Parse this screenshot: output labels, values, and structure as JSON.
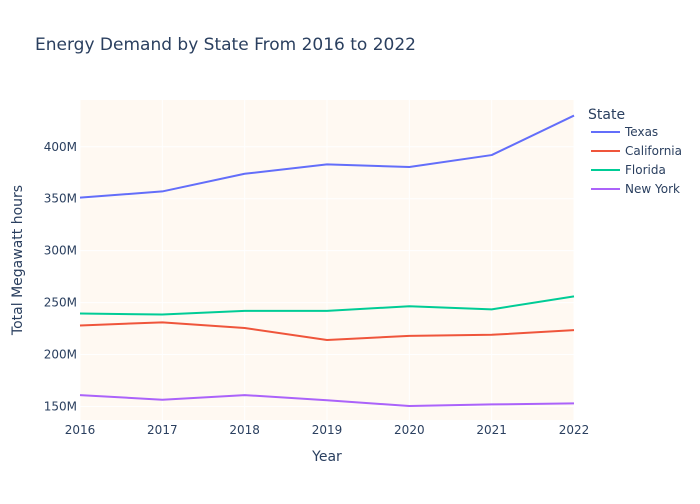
{
  "chart_data": {
    "type": "line",
    "title": "Energy Demand by State From 2016 to 2022",
    "xlabel": "Year",
    "ylabel": "Total Megawatt hours",
    "x": [
      2016,
      2017,
      2018,
      2019,
      2020,
      2021,
      2022
    ],
    "x_tick_labels": [
      "2016",
      "2017",
      "2018",
      "2019",
      "2020",
      "2021",
      "2022"
    ],
    "xlim": [
      2016,
      2022
    ],
    "ylim": [
      137000000,
      445000000
    ],
    "y_ticks": [
      150000000,
      200000000,
      250000000,
      300000000,
      350000000,
      400000000
    ],
    "y_tick_labels": [
      "150M",
      "200M",
      "250M",
      "300M",
      "350M",
      "400M"
    ],
    "grid": true,
    "plot_background": "#fff9f2",
    "legend": {
      "title": "State",
      "placement": "top-right, outside plot"
    },
    "series": [
      {
        "name": "Texas",
        "color": "#636efa",
        "values": [
          351000000,
          357000000,
          374000000,
          383000000,
          380500000,
          392000000,
          430000000
        ]
      },
      {
        "name": "California",
        "color": "#EF553B",
        "values": [
          228000000,
          231000000,
          225500000,
          214000000,
          218000000,
          219000000,
          223500000
        ]
      },
      {
        "name": "Florida",
        "color": "#00cc96",
        "values": [
          239500000,
          238500000,
          242000000,
          242000000,
          246500000,
          243500000,
          256000000
        ]
      },
      {
        "name": "New York",
        "color": "#ab63fa",
        "values": [
          161000000,
          156500000,
          161000000,
          156000000,
          150500000,
          152000000,
          153000000
        ]
      }
    ]
  }
}
